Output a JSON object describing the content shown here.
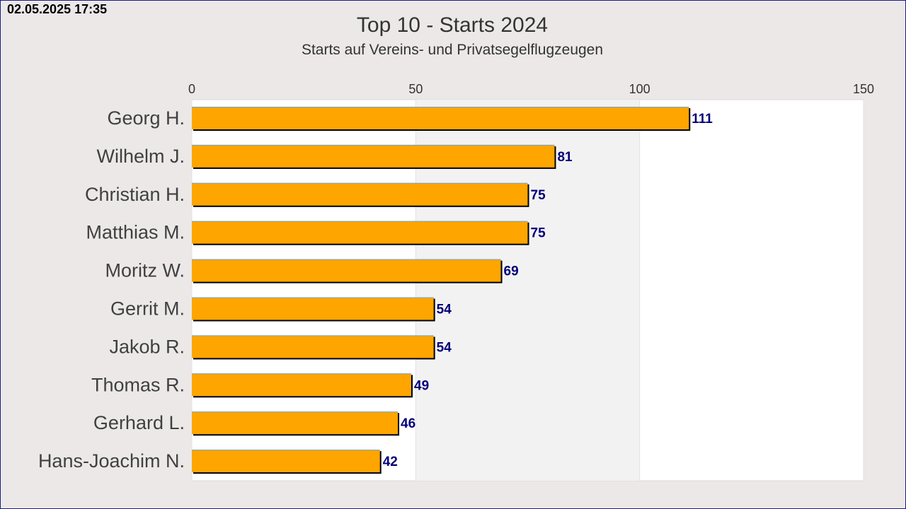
{
  "timestamp": "02.05.2025 17:35",
  "colors": {
    "bar": "#FFA500",
    "bar_outline": "#000000",
    "bar_top_edge": "#6aa7e0",
    "value_label": "#00007a",
    "band": "#f3f2f2",
    "plot_bg": "#ffffff",
    "page_bg": "#ece8e8"
  },
  "chart_data": {
    "type": "bar",
    "orientation": "horizontal",
    "title": "Top 10 - Starts 2024",
    "subtitle": "Starts auf Vereins- und Privatsegelflugzeugen",
    "xlabel": "",
    "ylabel": "",
    "xlim": [
      0,
      150
    ],
    "xticks": [
      0,
      50,
      100,
      150
    ],
    "tick_position": "top",
    "grid": true,
    "categories": [
      "Georg H.",
      "Wilhelm J.",
      "Christian H.",
      "Matthias M.",
      "Moritz W.",
      "Gerrit M.",
      "Jakob R.",
      "Thomas R.",
      "Gerhard L.",
      "Hans-Joachim N."
    ],
    "values": [
      111,
      81,
      75,
      75,
      69,
      54,
      54,
      49,
      46,
      42
    ]
  }
}
